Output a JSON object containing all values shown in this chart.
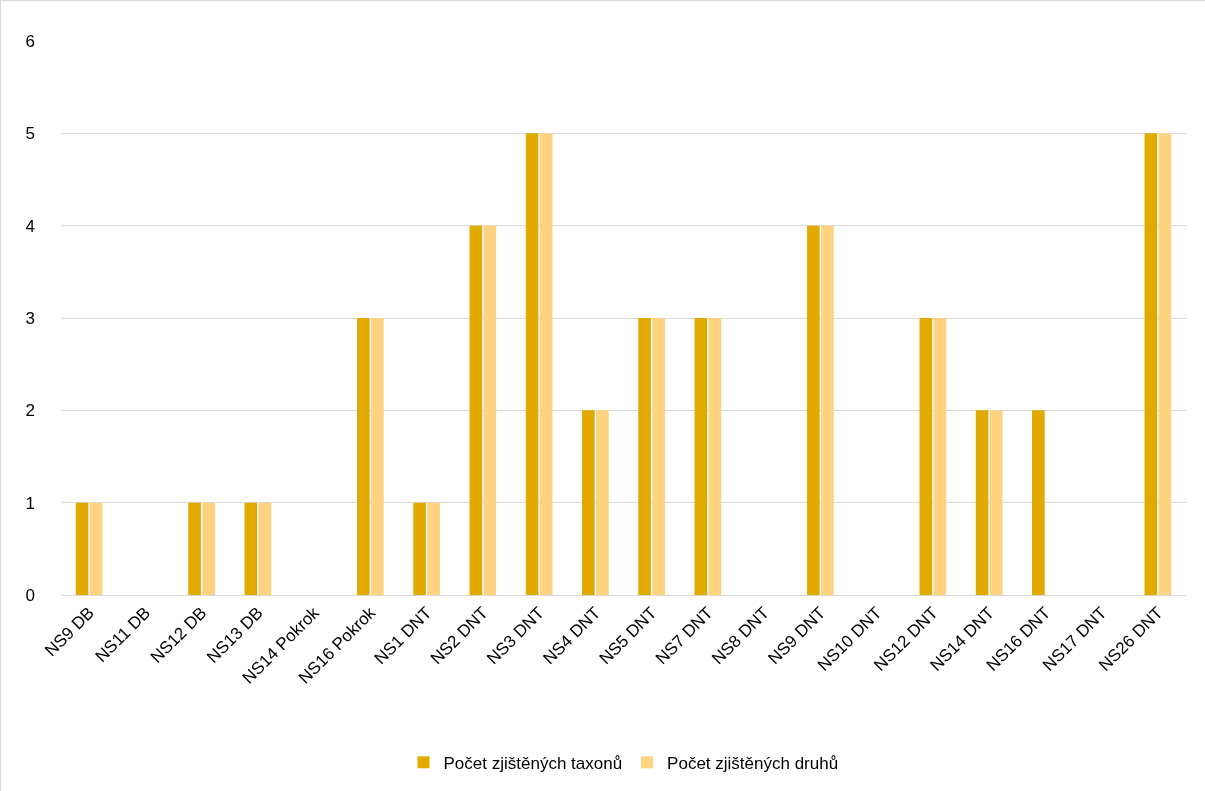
{
  "chart_data": {
    "type": "bar",
    "categories": [
      "NS9 DB",
      "NS11 DB",
      "NS12 DB",
      "NS13 DB",
      "NS14 Pokrok",
      "NS16 Pokrok",
      "NS1 DNT",
      "NS2 DNT",
      "NS3 DNT",
      "NS4 DNT",
      "NS5 DNT",
      "NS7 DNT",
      "NS8 DNT",
      "NS9 DNT",
      "NS10 DNT",
      "NS12 DNT",
      "NS14 DNT",
      "NS16 DNT",
      "NS17 DNT",
      "NS26 DNT"
    ],
    "series": [
      {
        "name": "Počet zjištěných taxonů",
        "color": "#e2aa00",
        "values": [
          1,
          0,
          1,
          1,
          0,
          3,
          1,
          4,
          5,
          2,
          3,
          3,
          0,
          4,
          0,
          3,
          2,
          2,
          0,
          5
        ]
      },
      {
        "name": "Počet zjištěných druhů",
        "color": "#ffd27f",
        "values": [
          1,
          0,
          1,
          1,
          0,
          3,
          1,
          4,
          5,
          2,
          3,
          3,
          0,
          4,
          0,
          3,
          2,
          0,
          0,
          5
        ]
      }
    ],
    "ylim": [
      0,
      6
    ],
    "yticks": [
      0,
      1,
      2,
      3,
      4,
      5,
      6
    ],
    "grid": "y",
    "legend": "bottom"
  }
}
